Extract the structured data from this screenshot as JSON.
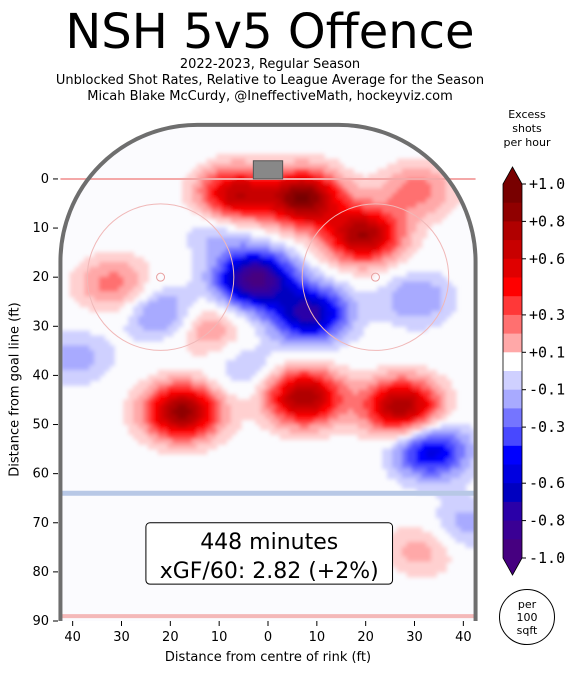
{
  "header": {
    "title": "NSH 5v5 Offence",
    "subtitle_lines": [
      "2022-2023, Regular Season",
      "Unblocked Shot Rates, Relative to League Average for the Season",
      "Micah Blake McCurdy, @IneffectiveMath, hockeyviz.com"
    ]
  },
  "chart_data": {
    "type": "heatmap",
    "title": "NSH 5v5 Offence",
    "xlabel": "Distance from centre of rink (ft)",
    "ylabel": "Distance from goal line (ft)",
    "xlim": [
      -43,
      43
    ],
    "ylim": [
      90,
      -12
    ],
    "x_ticks": [
      -40,
      -30,
      -20,
      -10,
      0,
      10,
      20,
      30,
      40
    ],
    "x_tick_labels": [
      "40",
      "30",
      "20",
      "10",
      "0",
      "10",
      "20",
      "30",
      "40"
    ],
    "y_ticks": [
      0,
      10,
      20,
      30,
      40,
      50,
      60,
      70,
      80,
      90
    ],
    "y_tick_labels": [
      "0",
      "10",
      "20",
      "30",
      "40",
      "50",
      "60",
      "70",
      "80",
      "90"
    ],
    "colorbar": {
      "title_lines": [
        "Excess",
        "shots",
        "per hour"
      ],
      "range": [
        -1.0,
        1.0
      ],
      "tick_values": [
        1.0,
        0.8,
        0.6,
        0.3,
        0.1,
        -0.1,
        -0.3,
        -0.6,
        -0.8,
        -1.0
      ],
      "tick_labels": [
        "+1.0",
        "+0.8",
        "+0.6",
        "+0.3",
        "+0.1",
        "-0.1",
        "-0.3",
        "-0.6",
        "-0.8",
        "-1.0"
      ],
      "positive_color": "#e00000",
      "negative_color": "#0000ee",
      "unit_badge": [
        "per",
        "100",
        "sqft"
      ]
    },
    "hotspots": [
      {
        "x": -7,
        "y": 3,
        "value": 0.75
      },
      {
        "x": 7,
        "y": 3.5,
        "value": 0.95
      },
      {
        "x": 19,
        "y": 11,
        "value": 0.85
      },
      {
        "x": 30,
        "y": 2,
        "value": 0.3
      },
      {
        "x": -18,
        "y": 47,
        "value": 0.9
      },
      {
        "x": 7,
        "y": 44,
        "value": 0.85
      },
      {
        "x": 27,
        "y": 46,
        "value": 0.85
      },
      {
        "x": -32,
        "y": 21,
        "value": 0.3
      },
      {
        "x": -13,
        "y": 30,
        "value": 0.25
      },
      {
        "x": 31,
        "y": 75,
        "value": 0.2
      },
      {
        "x": -3,
        "y": 20,
        "value": -1.0
      },
      {
        "x": 8,
        "y": 27,
        "value": -0.8
      },
      {
        "x": 33,
        "y": 55,
        "value": -0.6
      },
      {
        "x": -10,
        "y": 10,
        "value": -0.2
      },
      {
        "x": -22,
        "y": 27,
        "value": -0.3
      },
      {
        "x": -40,
        "y": 36,
        "value": -0.2
      },
      {
        "x": 30,
        "y": 24,
        "value": -0.25
      },
      {
        "x": 40,
        "y": 70,
        "value": -0.2
      },
      {
        "x": -5,
        "y": 38,
        "value": -0.15
      }
    ],
    "annotation": {
      "minutes": "448 minutes",
      "xgf": "xGF/60: 2.82 (+2%)"
    }
  }
}
